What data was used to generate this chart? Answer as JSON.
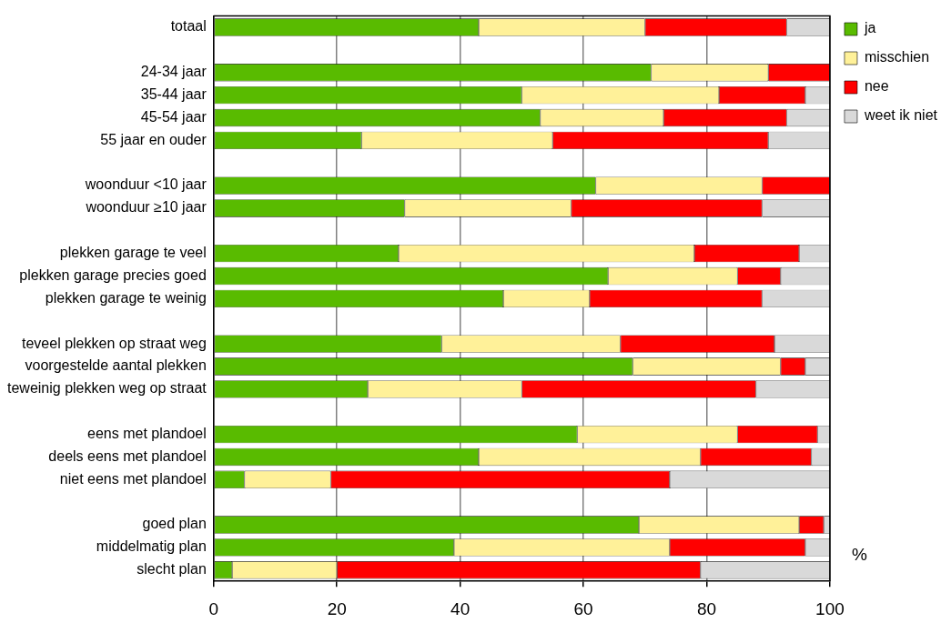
{
  "chart_data": {
    "type": "bar",
    "orientation": "horizontal",
    "stacked": true,
    "xlabel": "%",
    "categories": [
      "totaal",
      null,
      "24-34 jaar",
      "35-44 jaar",
      "45-54 jaar",
      "55 jaar en ouder",
      null,
      "woonduur <10 jaar",
      "woonduur ≥10 jaar",
      null,
      "plekken garage te veel",
      "plekken garage precies goed",
      "plekken garage te weinig",
      null,
      "teveel plekken op straat weg",
      "voorgestelde aantal plekken",
      "teweinig plekken weg op straat",
      null,
      "eens met plandoel",
      "deels eens met plandoel",
      "niet eens met plandoel",
      null,
      "goed plan",
      "middelmatig plan",
      "slecht plan"
    ],
    "series": [
      {
        "name": "ja",
        "color": "#59bb00",
        "values": [
          43,
          null,
          71,
          50,
          53,
          24,
          null,
          62,
          31,
          null,
          30,
          64,
          47,
          null,
          37,
          68,
          25,
          null,
          59,
          43,
          5,
          null,
          69,
          39,
          3
        ]
      },
      {
        "name": "misschien",
        "color": "#fff199",
        "values": [
          27,
          null,
          19,
          32,
          20,
          31,
          null,
          27,
          27,
          null,
          48,
          21,
          14,
          null,
          29,
          24,
          25,
          null,
          26,
          36,
          14,
          null,
          26,
          35,
          17
        ]
      },
      {
        "name": "nee",
        "color": "#ff0000",
        "values": [
          23,
          null,
          10,
          14,
          20,
          35,
          null,
          11,
          31,
          null,
          17,
          7,
          28,
          null,
          25,
          4,
          38,
          null,
          13,
          18,
          55,
          null,
          4,
          22,
          59
        ]
      },
      {
        "name": "weet ik niet",
        "color": "#d9d9d9",
        "values": [
          7,
          null,
          0,
          4,
          7,
          10,
          null,
          0,
          11,
          null,
          5,
          8,
          11,
          null,
          9,
          4,
          12,
          null,
          2,
          3,
          26,
          null,
          1,
          4,
          21
        ]
      }
    ],
    "xlim": [
      0,
      100
    ],
    "xticks": [
      0,
      20,
      40,
      60,
      80,
      100
    ],
    "grid": "x",
    "legend": "top right"
  }
}
